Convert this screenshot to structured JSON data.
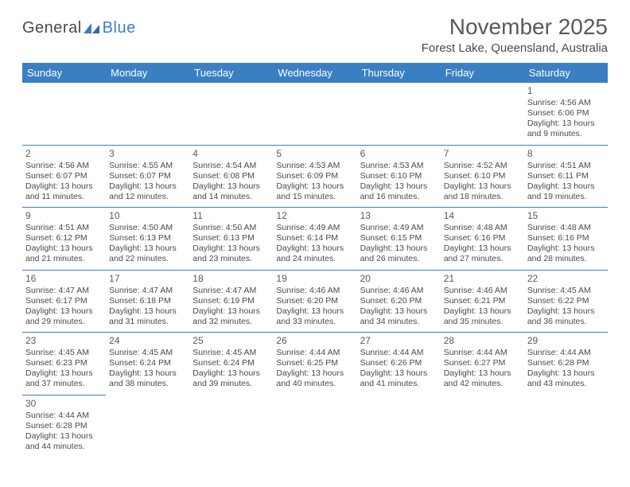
{
  "logo": {
    "part1": "General",
    "part2": "Blue"
  },
  "title": "November 2025",
  "location": "Forest Lake, Queensland, Australia",
  "colors": {
    "header_bg": "#3a7fc4",
    "header_text": "#ffffff",
    "border": "#3a7fc4",
    "text": "#4a4a4a",
    "title_text": "#595959"
  },
  "weekdays": [
    "Sunday",
    "Monday",
    "Tuesday",
    "Wednesday",
    "Thursday",
    "Friday",
    "Saturday"
  ],
  "weeks": [
    [
      null,
      null,
      null,
      null,
      null,
      null,
      {
        "d": "1",
        "sr": "4:56 AM",
        "ss": "6:06 PM",
        "dl1": "13 hours",
        "dl2": "and 9 minutes."
      }
    ],
    [
      {
        "d": "2",
        "sr": "4:56 AM",
        "ss": "6:07 PM",
        "dl1": "13 hours",
        "dl2": "and 11 minutes."
      },
      {
        "d": "3",
        "sr": "4:55 AM",
        "ss": "6:07 PM",
        "dl1": "13 hours",
        "dl2": "and 12 minutes."
      },
      {
        "d": "4",
        "sr": "4:54 AM",
        "ss": "6:08 PM",
        "dl1": "13 hours",
        "dl2": "and 14 minutes."
      },
      {
        "d": "5",
        "sr": "4:53 AM",
        "ss": "6:09 PM",
        "dl1": "13 hours",
        "dl2": "and 15 minutes."
      },
      {
        "d": "6",
        "sr": "4:53 AM",
        "ss": "6:10 PM",
        "dl1": "13 hours",
        "dl2": "and 16 minutes."
      },
      {
        "d": "7",
        "sr": "4:52 AM",
        "ss": "6:10 PM",
        "dl1": "13 hours",
        "dl2": "and 18 minutes."
      },
      {
        "d": "8",
        "sr": "4:51 AM",
        "ss": "6:11 PM",
        "dl1": "13 hours",
        "dl2": "and 19 minutes."
      }
    ],
    [
      {
        "d": "9",
        "sr": "4:51 AM",
        "ss": "6:12 PM",
        "dl1": "13 hours",
        "dl2": "and 21 minutes."
      },
      {
        "d": "10",
        "sr": "4:50 AM",
        "ss": "6:13 PM",
        "dl1": "13 hours",
        "dl2": "and 22 minutes."
      },
      {
        "d": "11",
        "sr": "4:50 AM",
        "ss": "6:13 PM",
        "dl1": "13 hours",
        "dl2": "and 23 minutes."
      },
      {
        "d": "12",
        "sr": "4:49 AM",
        "ss": "6:14 PM",
        "dl1": "13 hours",
        "dl2": "and 24 minutes."
      },
      {
        "d": "13",
        "sr": "4:49 AM",
        "ss": "6:15 PM",
        "dl1": "13 hours",
        "dl2": "and 26 minutes."
      },
      {
        "d": "14",
        "sr": "4:48 AM",
        "ss": "6:16 PM",
        "dl1": "13 hours",
        "dl2": "and 27 minutes."
      },
      {
        "d": "15",
        "sr": "4:48 AM",
        "ss": "6:16 PM",
        "dl1": "13 hours",
        "dl2": "and 28 minutes."
      }
    ],
    [
      {
        "d": "16",
        "sr": "4:47 AM",
        "ss": "6:17 PM",
        "dl1": "13 hours",
        "dl2": "and 29 minutes."
      },
      {
        "d": "17",
        "sr": "4:47 AM",
        "ss": "6:18 PM",
        "dl1": "13 hours",
        "dl2": "and 31 minutes."
      },
      {
        "d": "18",
        "sr": "4:47 AM",
        "ss": "6:19 PM",
        "dl1": "13 hours",
        "dl2": "and 32 minutes."
      },
      {
        "d": "19",
        "sr": "4:46 AM",
        "ss": "6:20 PM",
        "dl1": "13 hours",
        "dl2": "and 33 minutes."
      },
      {
        "d": "20",
        "sr": "4:46 AM",
        "ss": "6:20 PM",
        "dl1": "13 hours",
        "dl2": "and 34 minutes."
      },
      {
        "d": "21",
        "sr": "4:46 AM",
        "ss": "6:21 PM",
        "dl1": "13 hours",
        "dl2": "and 35 minutes."
      },
      {
        "d": "22",
        "sr": "4:45 AM",
        "ss": "6:22 PM",
        "dl1": "13 hours",
        "dl2": "and 36 minutes."
      }
    ],
    [
      {
        "d": "23",
        "sr": "4:45 AM",
        "ss": "6:23 PM",
        "dl1": "13 hours",
        "dl2": "and 37 minutes."
      },
      {
        "d": "24",
        "sr": "4:45 AM",
        "ss": "6:24 PM",
        "dl1": "13 hours",
        "dl2": "and 38 minutes."
      },
      {
        "d": "25",
        "sr": "4:45 AM",
        "ss": "6:24 PM",
        "dl1": "13 hours",
        "dl2": "and 39 minutes."
      },
      {
        "d": "26",
        "sr": "4:44 AM",
        "ss": "6:25 PM",
        "dl1": "13 hours",
        "dl2": "and 40 minutes."
      },
      {
        "d": "27",
        "sr": "4:44 AM",
        "ss": "6:26 PM",
        "dl1": "13 hours",
        "dl2": "and 41 minutes."
      },
      {
        "d": "28",
        "sr": "4:44 AM",
        "ss": "6:27 PM",
        "dl1": "13 hours",
        "dl2": "and 42 minutes."
      },
      {
        "d": "29",
        "sr": "4:44 AM",
        "ss": "6:28 PM",
        "dl1": "13 hours",
        "dl2": "and 43 minutes."
      }
    ],
    [
      {
        "d": "30",
        "sr": "4:44 AM",
        "ss": "6:28 PM",
        "dl1": "13 hours",
        "dl2": "and 44 minutes."
      },
      null,
      null,
      null,
      null,
      null,
      null
    ]
  ],
  "labels": {
    "sunrise": "Sunrise: ",
    "sunset": "Sunset: ",
    "daylight": "Daylight: "
  }
}
